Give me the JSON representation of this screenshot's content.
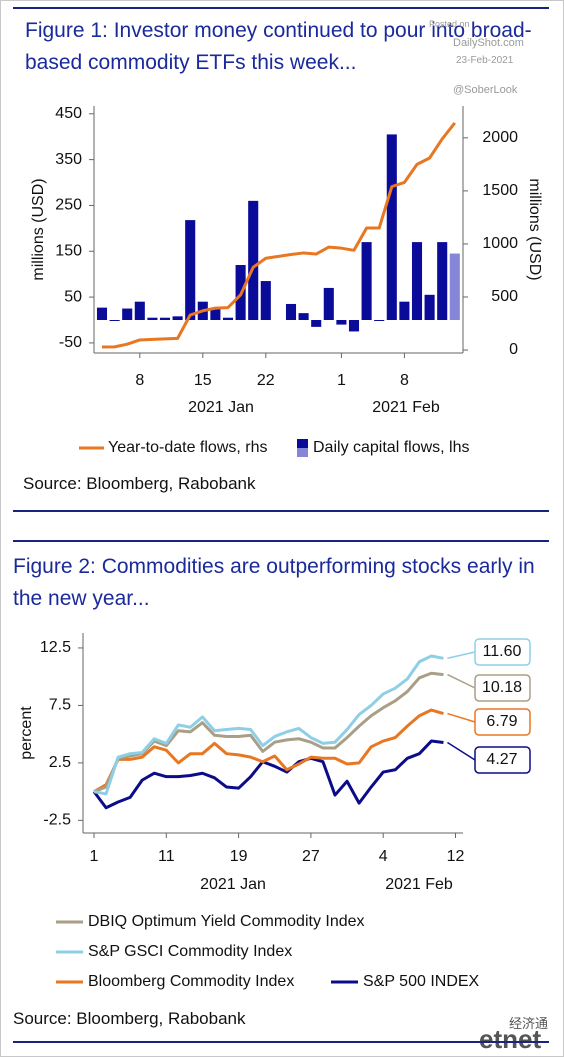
{
  "chart_data": [
    {
      "type": "combo",
      "title": "Figure 1: Investor money continued to pour into broad-based commodity ETFs this week...",
      "ylabel": "millions (USD)",
      "y2label": "millions (USD)",
      "x": [
        "2021-01-05",
        "2021-01-06",
        "2021-01-07",
        "2021-01-08",
        "2021-01-11",
        "2021-01-12",
        "2021-01-13",
        "2021-01-14",
        "2021-01-15",
        "2021-01-18",
        "2021-01-19",
        "2021-01-20",
        "2021-01-21",
        "2021-01-22",
        "2021-01-26",
        "2021-01-27",
        "2021-01-28",
        "2021-01-29",
        "2021-02-01",
        "2021-02-02",
        "2021-02-03",
        "2021-02-04",
        "2021-02-05",
        "2021-02-08",
        "2021-02-09",
        "2021-02-10",
        "2021-02-11",
        "2021-02-12"
      ],
      "xticks": [
        {
          "value": "2021-01-08",
          "label": "8"
        },
        {
          "value": "2021-01-15",
          "label": "15"
        },
        {
          "value": "2021-01-22",
          "label": "22"
        },
        {
          "value": "2021-02-01",
          "label": "1"
        },
        {
          "value": "2021-02-08",
          "label": "8"
        }
      ],
      "x_group_labels": [
        "2021 Jan",
        "2021 Feb"
      ],
      "ylim": [
        -72,
        467
      ],
      "yticks": [
        -50,
        50,
        150,
        250,
        350,
        450
      ],
      "y2lim": [
        -28,
        2300
      ],
      "y2ticks": [
        0,
        500,
        1000,
        1500,
        2000
      ],
      "series": [
        {
          "name": "Year-to-date flows, rhs",
          "type": "line",
          "axis": "y2",
          "color": "#e87722",
          "values": [
            28,
            30,
            55,
            95,
            100,
            105,
            110,
            330,
            370,
            395,
            400,
            520,
            780,
            865,
            900,
            915,
            905,
            970,
            960,
            940,
            1150,
            1150,
            1540,
            1580,
            1750,
            1810,
            1990,
            2140
          ]
        },
        {
          "name": "Daily capital flows, lhs",
          "type": "bar",
          "color": "#0b0b99",
          "colors": [
            "#0b0b99",
            "#0b0b99",
            "#0b0b99",
            "#0b0b99",
            "#0b0b99",
            "#0b0b99",
            "#0b0b99",
            "#0b0b99",
            "#0b0b99",
            "#0b0b99",
            "#0b0b99",
            "#0b0b99",
            "#0b0b99",
            "#0b0b99",
            "#0b0b99",
            "#0b0b99",
            "#0b0b99",
            "#0b0b99",
            "#0b0b99",
            "#0b0b99",
            "#0b0b99",
            "#0b0b99",
            "#0b0b99",
            "#0b0b99",
            "#0b0b99",
            "#0b0b99",
            "#0b0b99",
            "#8686d8"
          ],
          "values": [
            27,
            -2,
            25,
            40,
            5,
            5,
            8,
            218,
            40,
            25,
            5,
            120,
            260,
            85,
            35,
            15,
            -15,
            70,
            -10,
            -25,
            170,
            0,
            405,
            40,
            170,
            55,
            170,
            145
          ]
        }
      ],
      "source": "Source: Bloomberg, Rabobank"
    },
    {
      "type": "line",
      "title": "Figure 2: Commodities are outperforming stocks early in the new year...",
      "ylabel": "percent",
      "x": [
        "2021-01-01",
        "2021-01-04",
        "2021-01-05",
        "2021-01-06",
        "2021-01-07",
        "2021-01-08",
        "2021-01-11",
        "2021-01-12",
        "2021-01-13",
        "2021-01-14",
        "2021-01-15",
        "2021-01-18",
        "2021-01-19",
        "2021-01-20",
        "2021-01-21",
        "2021-01-22",
        "2021-01-25",
        "2021-01-26",
        "2021-01-27",
        "2021-01-28",
        "2021-01-29",
        "2021-02-01",
        "2021-02-02",
        "2021-02-03",
        "2021-02-04",
        "2021-02-05",
        "2021-02-08",
        "2021-02-09",
        "2021-02-10",
        "2021-02-11"
      ],
      "xticks": [
        {
          "value": "2021-01-01",
          "label": "1"
        },
        {
          "value": "2021-01-11",
          "label": "11"
        },
        {
          "value": "2021-01-19",
          "label": "19"
        },
        {
          "value": "2021-01-27",
          "label": "27"
        },
        {
          "value": "2021-02-04",
          "label": "4"
        },
        {
          "value": "2021-02-12",
          "label": "12"
        }
      ],
      "x_group_labels": [
        "2021 Jan",
        "2021 Feb"
      ],
      "ylim": [
        -3.6,
        13.8
      ],
      "yticks": [
        -2.5,
        2.5,
        7.5,
        12.5
      ],
      "series": [
        {
          "name": "DBIQ Optimum Yield Commodity Index",
          "color": "#a89f86",
          "end_label": "10.18",
          "values": [
            0,
            0.4,
            2.9,
            3.1,
            3.3,
            4.4,
            4.0,
            5.3,
            5.2,
            6.0,
            4.9,
            4.8,
            4.8,
            4.9,
            3.5,
            4.3,
            4.5,
            4.6,
            4.3,
            3.8,
            3.8,
            4.7,
            5.7,
            6.6,
            7.3,
            7.9,
            8.7,
            9.9,
            10.3,
            10.18
          ]
        },
        {
          "name": "S&P GSCI Commodity Index",
          "color": "#8fcfe6",
          "end_label": "11.60",
          "values": [
            0,
            -0.2,
            3.0,
            3.3,
            3.4,
            4.6,
            4.2,
            5.8,
            5.6,
            6.5,
            5.3,
            5.4,
            5.5,
            5.4,
            4.0,
            4.8,
            5.2,
            5.5,
            4.7,
            4.2,
            4.3,
            5.4,
            6.7,
            7.5,
            8.5,
            9.0,
            9.8,
            11.3,
            11.8,
            11.6
          ]
        },
        {
          "name": "Bloomberg Commodity Index",
          "color": "#e87722",
          "end_label": "6.79",
          "values": [
            0,
            0.6,
            2.8,
            2.8,
            3.0,
            3.9,
            3.6,
            2.5,
            3.3,
            3.3,
            4.2,
            3.3,
            3.2,
            3.0,
            2.6,
            3.1,
            1.9,
            2.4,
            3.0,
            2.9,
            2.9,
            2.4,
            2.5,
            3.9,
            4.4,
            4.7,
            5.7,
            6.6,
            7.1,
            6.79
          ]
        },
        {
          "name": "S&P 500 INDEX",
          "color": "#0c0c8a",
          "end_label": "4.27",
          "values": [
            0,
            -1.4,
            -0.9,
            -0.5,
            1.0,
            1.6,
            1.3,
            1.3,
            1.4,
            1.6,
            1.2,
            0.4,
            0.3,
            1.3,
            2.6,
            2.2,
            1.7,
            2.6,
            2.9,
            2.6,
            -0.3,
            0.9,
            -1.0,
            0.4,
            1.7,
            1.9,
            2.9,
            3.3,
            4.4,
            4.27
          ]
        }
      ],
      "source": "Source: Bloomberg, Rabobank"
    }
  ],
  "watermarks": {
    "posted_on": "Posted on",
    "site": "DailyShot.com",
    "date": "23-Feb-2021",
    "handle": "@SoberLook",
    "etnet_cn": "经济通",
    "etnet": "etnet"
  }
}
